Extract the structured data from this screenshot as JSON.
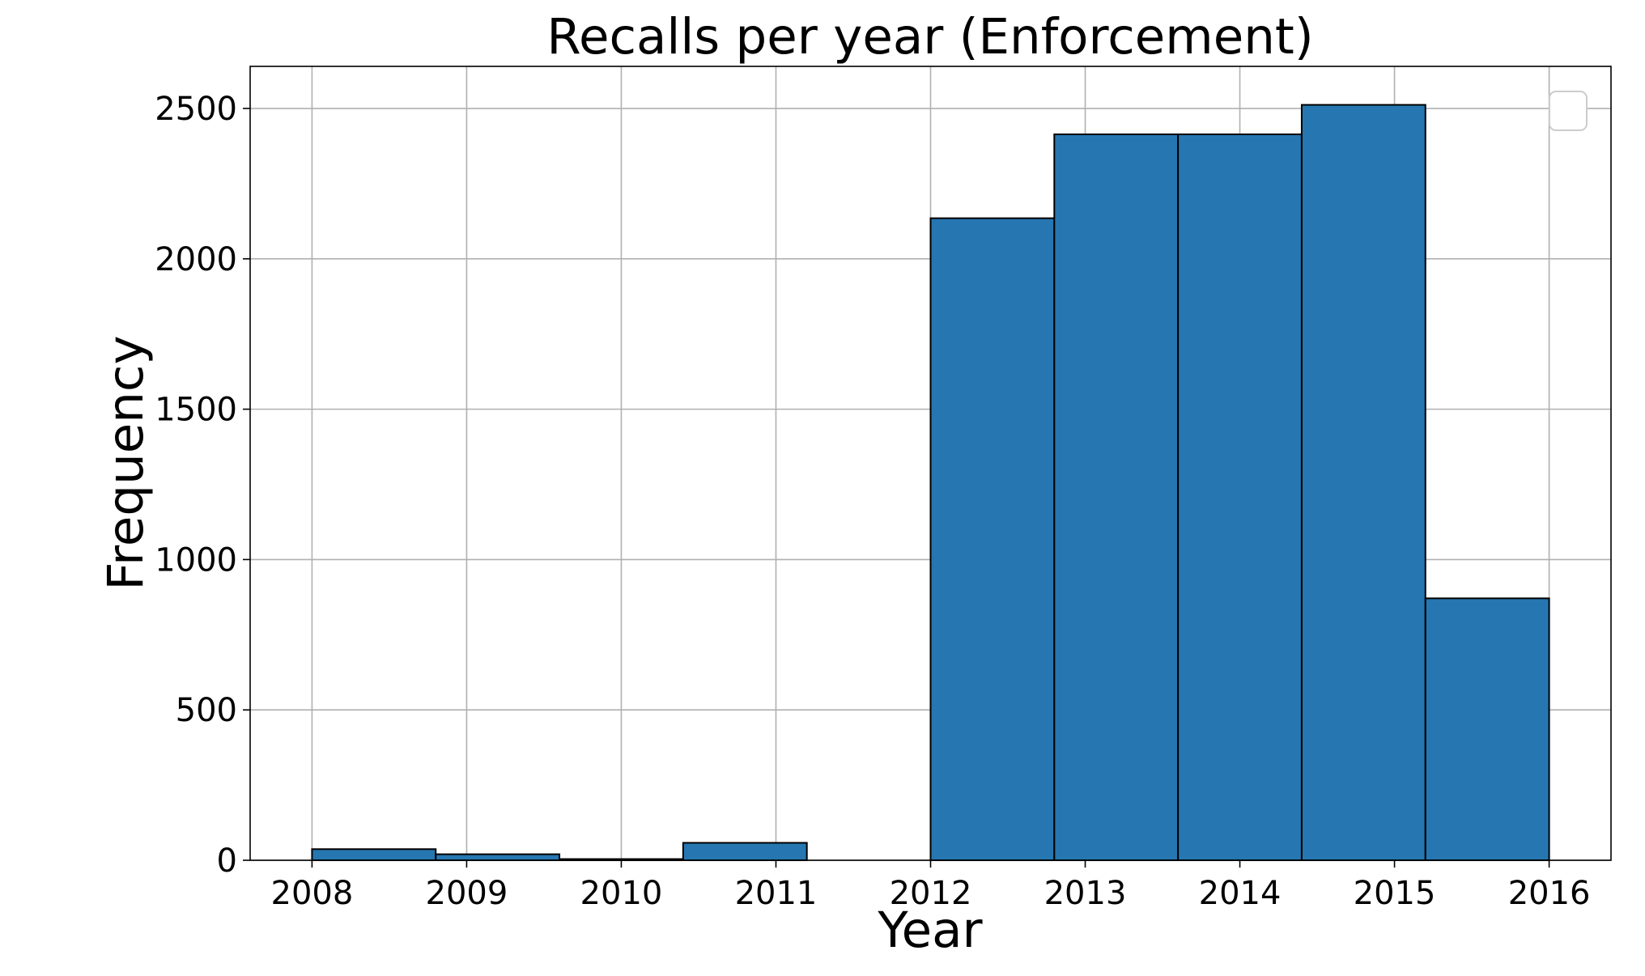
{
  "chart_data": {
    "type": "bar",
    "title": "Recalls per year (Enforcement)",
    "xlabel": "Year",
    "ylabel": "Frequency",
    "xlim": [
      2007.6,
      2016.4
    ],
    "ylim": [
      0,
      2640
    ],
    "x_ticks": [
      "2008",
      "2009",
      "2010",
      "2011",
      "2012",
      "2013",
      "2014",
      "2015",
      "2016"
    ],
    "y_ticks": [
      "0",
      "500",
      "1000",
      "1500",
      "2000",
      "2500"
    ],
    "bins": [
      {
        "start": 2008.0,
        "end": 2008.8,
        "value": 37
      },
      {
        "start": 2008.8,
        "end": 2009.6,
        "value": 20
      },
      {
        "start": 2009.6,
        "end": 2010.4,
        "value": 4
      },
      {
        "start": 2010.4,
        "end": 2011.2,
        "value": 58
      },
      {
        "start": 2011.2,
        "end": 2012.0,
        "value": 0
      },
      {
        "start": 2012.0,
        "end": 2012.8,
        "value": 2135
      },
      {
        "start": 2012.8,
        "end": 2013.6,
        "value": 2414
      },
      {
        "start": 2013.6,
        "end": 2014.4,
        "value": 2414
      },
      {
        "start": 2014.4,
        "end": 2015.2,
        "value": 2512
      },
      {
        "start": 2015.2,
        "end": 2016.0,
        "value": 871
      }
    ],
    "bar_color": "#2677b1",
    "edge_color": "#000000",
    "grid": true,
    "legend": {
      "position": "top-right",
      "entries": []
    }
  }
}
